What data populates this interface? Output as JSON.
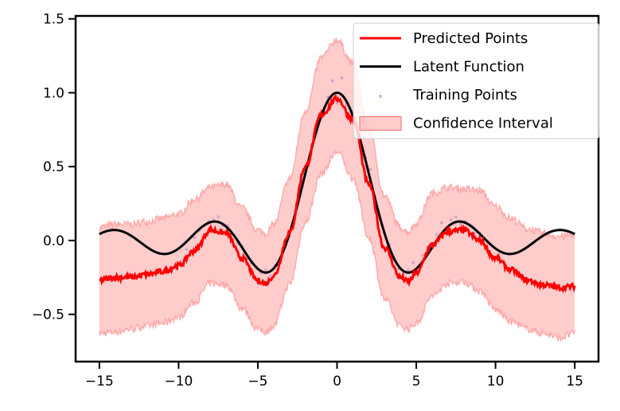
{
  "chart_data": {
    "type": "line",
    "title": "",
    "xlabel": "",
    "ylabel": "",
    "xlim": [
      -16.5,
      16.5
    ],
    "ylim": [
      -0.82,
      1.52
    ],
    "grid": false,
    "legend_position": "top-right",
    "x_ticks": [
      -15,
      -10,
      -5,
      0,
      5,
      10,
      15
    ],
    "x_tick_labels": [
      "−15",
      "−10",
      "−5",
      "0",
      "5",
      "10",
      "15"
    ],
    "y_ticks": [
      -0.5,
      0.0,
      0.5,
      1.0,
      1.5
    ],
    "y_tick_labels": [
      "−0.5",
      "0.0",
      "0.5",
      "1.0",
      "1.5"
    ],
    "colors": {
      "predicted": "#ff0000",
      "latent": "#000000",
      "training": "#6a5acd",
      "confidence_fill": "#ff9999",
      "confidence_edge": "#ff6666"
    },
    "series": [
      {
        "name": "Predicted Points",
        "x": [
          -15,
          -14,
          -13,
          -12,
          -11,
          -10,
          -9,
          -8,
          -7,
          -6,
          -5,
          -4.5,
          -4,
          -3,
          -2,
          -1,
          0,
          1,
          2,
          3,
          4,
          4.5,
          5,
          6,
          7,
          8,
          9,
          10,
          11,
          12,
          13,
          14,
          15
        ],
        "y": [
          -0.27,
          -0.25,
          -0.25,
          -0.23,
          -0.21,
          -0.17,
          -0.07,
          0.07,
          0.05,
          -0.12,
          -0.27,
          -0.29,
          -0.24,
          0.05,
          0.5,
          0.85,
          0.96,
          0.82,
          0.38,
          -0.05,
          -0.25,
          -0.28,
          -0.22,
          -0.03,
          0.06,
          0.07,
          0.0,
          -0.12,
          -0.2,
          -0.27,
          -0.3,
          -0.32,
          -0.31
        ]
      },
      {
        "name": "Latent Function",
        "formula": "sin(x)/x"
      },
      {
        "name": "Training Points",
        "x": [
          -9.5,
          -9,
          -8.7,
          -8.4,
          -8.1,
          -7.8,
          -7.5,
          -7.2,
          -6.9,
          -6.6,
          -6.3,
          -6,
          -5.7,
          -5.4,
          -5.1,
          -4.8,
          -4.5,
          -4.2,
          -3.9,
          -3.6,
          -3.3,
          -3,
          -2.7,
          -2.4,
          -2.1,
          -1.8,
          -1.5,
          -1.2,
          -0.9,
          -0.6,
          -0.3,
          0,
          0.3,
          0.6,
          0.9,
          1.2,
          1.5,
          1.8,
          2.1,
          2.4,
          2.7,
          3,
          3.3,
          3.6,
          3.9,
          4.2,
          4.5,
          4.8,
          5.1,
          5.4,
          5.7,
          6,
          6.3,
          6.6,
          6.9,
          7.2,
          7.5,
          7.8,
          8.1,
          8.4,
          8.7,
          9,
          9.5
        ],
        "y": [
          -0.06,
          0.02,
          0.07,
          0.1,
          0.13,
          0.14,
          0.16,
          0.1,
          0.1,
          0.0,
          -0.02,
          -0.04,
          -0.12,
          -0.15,
          -0.18,
          -0.22,
          -0.2,
          -0.24,
          -0.17,
          -0.14,
          -0.03,
          0.03,
          0.2,
          0.3,
          0.45,
          0.53,
          0.67,
          0.78,
          0.86,
          0.97,
          1.08,
          0.93,
          1.1,
          0.92,
          0.88,
          0.84,
          0.69,
          0.56,
          0.48,
          0.3,
          0.15,
          0.05,
          -0.03,
          -0.13,
          -0.19,
          -0.22,
          -0.2,
          -0.15,
          -0.18,
          -0.1,
          -0.06,
          -0.05,
          0.04,
          0.12,
          0.07,
          0.14,
          0.16,
          0.11,
          0.13,
          0.1,
          0.05,
          0.05,
          -0.01
        ]
      },
      {
        "name": "Confidence Interval",
        "x": [
          -15,
          -14,
          -13,
          -12,
          -11,
          -10,
          -9,
          -8,
          -7,
          -6,
          -5,
          -4.5,
          -4,
          -3,
          -2,
          -1,
          0,
          1,
          2,
          3,
          4,
          4.5,
          5,
          6,
          7,
          8,
          9,
          10,
          11,
          12,
          13,
          14,
          15
        ],
        "lower": [
          -0.63,
          -0.62,
          -0.6,
          -0.58,
          -0.56,
          -0.52,
          -0.42,
          -0.29,
          -0.3,
          -0.46,
          -0.6,
          -0.62,
          -0.58,
          -0.3,
          0.12,
          0.45,
          0.6,
          0.42,
          0.02,
          -0.4,
          -0.58,
          -0.6,
          -0.56,
          -0.38,
          -0.29,
          -0.28,
          -0.34,
          -0.47,
          -0.55,
          -0.6,
          -0.63,
          -0.66,
          -0.63
        ],
        "upper": [
          0.09,
          0.11,
          0.11,
          0.13,
          0.15,
          0.18,
          0.28,
          0.36,
          0.38,
          0.22,
          0.07,
          0.05,
          0.11,
          0.42,
          0.88,
          1.24,
          1.36,
          1.2,
          0.76,
          0.3,
          0.09,
          0.06,
          0.12,
          0.32,
          0.36,
          0.35,
          0.34,
          0.23,
          0.15,
          0.08,
          0.05,
          0.03,
          0.04
        ]
      }
    ],
    "legend": [
      {
        "label": "Predicted Points",
        "swatch": "line",
        "color": "#ff0000"
      },
      {
        "label": "Latent Function",
        "swatch": "line",
        "color": "#000000"
      },
      {
        "label": "Training Points",
        "swatch": "dot",
        "color": "#6a5acd"
      },
      {
        "label": "Confidence Interval",
        "swatch": "patch",
        "color": "#ff9999"
      }
    ]
  }
}
